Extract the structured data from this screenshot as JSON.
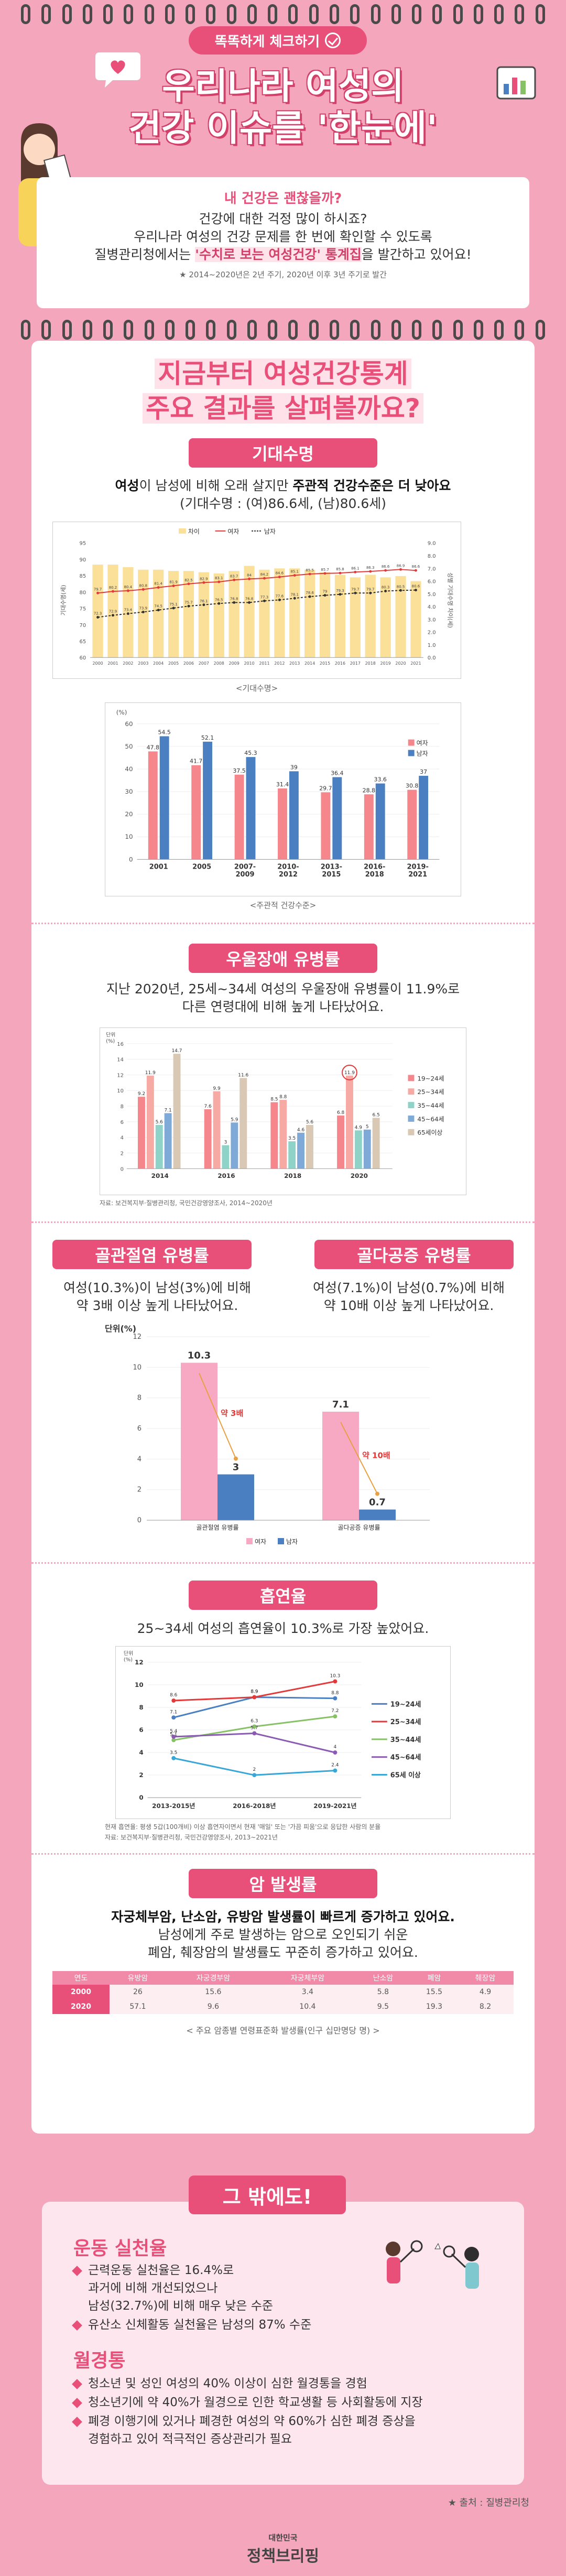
{
  "header": {
    "badge": "똑똑하게 체크하기",
    "title_line1": "우리나라 여성의",
    "title_line2": "건강 이슈를 '한눈에'"
  },
  "intro": {
    "question": "내 건강은 괜찮을까?",
    "line1": "건강에 대한 걱정 많이 하시죠?",
    "line2": "우리나라 여성의 건강 문제를 한 번에 확인할 수 있도록",
    "line3_pre": "질병관리청에서는 ",
    "line3_hl": "'수치로 보는 여성건강' 통계집",
    "line3_post": "을 발간하고 있어요!",
    "note": "★ 2014~2020년은 2년 주기, 2020년 이후 3년 주기로 발간"
  },
  "section": {
    "head_line1": "지금부터 여성건강통계",
    "head_line2": "주요 결과를 살펴볼까요?"
  },
  "life": {
    "pill": "기대수명",
    "text1_a": "여성",
    "text1_b": "이 남성에 비해 오래 살지만 ",
    "text1_c": "주관적 건강수준은 더 낮아요",
    "text2": "(기대수명 : (여)86.6세, (남)80.6세)",
    "chart1_caption": "<기대수명>",
    "chart2_caption": "<주관적 건강수준>"
  },
  "chart_life": {
    "type": "line",
    "legend": [
      "차이",
      "여자",
      "남자"
    ],
    "y_left_label": "기대수명(세)",
    "y_right_label": "성별 기대수명 차이(세)",
    "x": [
      "2000",
      "2001",
      "2002",
      "2003",
      "2004",
      "2005",
      "2006",
      "2007",
      "2008",
      "2009",
      "2010",
      "2011",
      "2012",
      "2013",
      "2014",
      "2015",
      "2016",
      "2017",
      "2018",
      "2019",
      "2020",
      "2021"
    ],
    "female": [
      79.7,
      80.2,
      80.4,
      80.8,
      81.4,
      81.9,
      82.5,
      82.9,
      83.1,
      83.7,
      84.0,
      84.2,
      84.6,
      85.1,
      85.5,
      85.7,
      85.8,
      86.1,
      86.3,
      86.6,
      86.9,
      86.6
    ],
    "male": [
      72.3,
      72.9,
      73.4,
      73.9,
      74.5,
      75.1,
      75.7,
      76.1,
      76.5,
      76.8,
      76.8,
      77.3,
      77.6,
      78.1,
      78.6,
      79.0,
      79.3,
      79.7,
      79.7,
      80.3,
      80.5,
      80.6
    ],
    "diff": [
      7.3,
      7.3,
      7.1,
      6.9,
      6.9,
      6.8,
      6.8,
      6.7,
      6.6,
      6.8,
      7.2,
      6.9,
      7.0,
      7.0,
      6.9,
      6.7,
      6.5,
      6.3,
      6.5,
      6.3,
      6.4,
      6.0
    ],
    "ylim": [
      60,
      95
    ],
    "ylim_right": [
      0,
      9
    ],
    "y_ticks": [
      "95",
      "90",
      "85",
      "80",
      "75",
      "70",
      "65",
      "60"
    ],
    "y_right_ticks": [
      "9.0",
      "8.0",
      "7.0",
      "6.0",
      "5.0",
      "4.0",
      "3.0",
      "2.0",
      "1.0",
      "0.0"
    ]
  },
  "chart_subjective": {
    "type": "bar",
    "unit": "(%)",
    "legend": [
      "여자",
      "남자"
    ],
    "categories": [
      "2001",
      "2005",
      "2007-\n2009",
      "2010-\n2012",
      "2013-\n2015",
      "2016-\n2018",
      "2019-\n2021"
    ],
    "female": [
      47.8,
      41.7,
      37.5,
      31.4,
      29.7,
      28.8,
      30.8
    ],
    "male": [
      54.5,
      52.1,
      45.3,
      39.0,
      36.4,
      33.6,
      37.0
    ],
    "ylim": [
      0,
      60
    ],
    "y_ticks": [
      "60",
      "50",
      "40",
      "30",
      "20",
      "10",
      "0"
    ]
  },
  "depression": {
    "pill": "우울장애 유병률",
    "text1": "지난 2020년, 25세~34세 여성의 우울장애 유병률이 11.9%로",
    "text2": "다른 연령대에 비해 높게 나타났어요.",
    "source": "자료: 보건복지부·질병관리청, 국민건강영양조사, 2014~2020년"
  },
  "chart_depression": {
    "type": "bar",
    "unit": "단위\n(%)",
    "categories": [
      "2014",
      "2016",
      "2018",
      "2020"
    ],
    "series": [
      {
        "name": "19~24세",
        "color": "#f4868c",
        "values": [
          9.2,
          7.6,
          8.5,
          6.8
        ]
      },
      {
        "name": "25~34세",
        "color": "#f7a9a4",
        "values": [
          11.9,
          9.9,
          8.8,
          11.9
        ]
      },
      {
        "name": "35~44세",
        "color": "#8fd3c8",
        "values": [
          5.6,
          3.0,
          3.5,
          4.9
        ]
      },
      {
        "name": "45~64세",
        "color": "#7fa9d6",
        "values": [
          7.1,
          5.9,
          4.6,
          5.0
        ]
      },
      {
        "name": "65세이상",
        "color": "#d9c8b4",
        "values": [
          14.7,
          11.6,
          5.6,
          6.5
        ]
      }
    ],
    "ylim": [
      0,
      16
    ],
    "y_ticks": [
      "16",
      "14",
      "12",
      "10",
      "8",
      "6",
      "4",
      "2",
      "0"
    ]
  },
  "bone": {
    "pill1": "골관절염 유병률",
    "pill2": "골다공증 유병률",
    "text1_l1": "여성(10.3%)이 남성(3%)에 비해",
    "text1_l2": "약 3배 이상 높게 나타났어요.",
    "text2_l1": "여성(7.1%)이 남성(0.7%)에 비해",
    "text2_l2": "약 10배 이상 높게 나타났어요."
  },
  "chart_bone": {
    "type": "bar",
    "unit": "단위(%)",
    "categories": [
      "골관절염 유병률",
      "골다공증 유병률"
    ],
    "series": [
      {
        "name": "여자",
        "values": [
          10.3,
          7.1
        ]
      },
      {
        "name": "남자",
        "values": [
          3,
          0.7
        ]
      }
    ],
    "annotations": [
      "약 3배",
      "약 10배"
    ],
    "ylim": [
      0,
      12
    ],
    "y_ticks": [
      "12",
      "10",
      "8",
      "6",
      "4",
      "2",
      "0"
    ]
  },
  "smoking": {
    "pill": "흡연율",
    "text": "25~34세 여성의 흡연율이 10.3%로 가장 높았어요.",
    "note1": "현재 흡연율: 평생 5갑(100개비) 이상 흡연자이면서 현재 '매일' 또는 '가끔 피움'으로 응답한 사람의 분율",
    "note2": "자료: 보건복지부·질병관리청, 국민건강영양조사, 2013~2021년"
  },
  "chart_smoking": {
    "type": "line",
    "unit": "단위\n(%)",
    "x": [
      "2013-2015년",
      "2016-2018년",
      "2019-2021년"
    ],
    "series": [
      {
        "name": "19~24세",
        "color": "#4a7fc1",
        "values": [
          7.1,
          8.9,
          8.8
        ]
      },
      {
        "name": "25~34세",
        "color": "#e03a3a",
        "values": [
          8.6,
          8.9,
          10.3
        ]
      },
      {
        "name": "35~44세",
        "color": "#86c166",
        "values": [
          5.1,
          6.3,
          7.2
        ]
      },
      {
        "name": "45~64세",
        "color": "#8a5bb0",
        "values": [
          5.4,
          5.7,
          4.0
        ]
      },
      {
        "name": "65세 이상",
        "color": "#3aa6d6",
        "values": [
          3.5,
          2.0,
          2.4
        ]
      }
    ],
    "ylim": [
      0,
      12
    ],
    "y_ticks": [
      "12",
      "10",
      "8",
      "6",
      "4",
      "2",
      "0"
    ]
  },
  "cancer": {
    "pill": "암 발생률",
    "text1": "자궁체부암, 난소암, 유방암 발생률이 빠르게 증가하고 있어요.",
    "text2": "남성에게 주로 발생하는 암으로 오인되기 쉬운",
    "text3": "폐암, 췌장암의 발생률도 꾸준히 증가하고 있어요.",
    "caption": "< 주요 암종별 연령표준화 발생률(인구 십만명당 명) >",
    "headers": [
      "연도",
      "유방암",
      "자궁경부암",
      "자궁체부암",
      "난소암",
      "폐암",
      "췌장암"
    ],
    "rows": [
      [
        "2000",
        "26",
        "15.6",
        "3.4",
        "5.8",
        "15.5",
        "4.9"
      ],
      [
        "2020",
        "57.1",
        "9.6",
        "10.4",
        "9.5",
        "19.3",
        "8.2"
      ]
    ]
  },
  "other": {
    "pill": "그 밖에도!",
    "exercise_title": "운동 실천율",
    "exercise_b1_l1": "근력운동 실천율은 16.4%로",
    "exercise_b1_l2": "과거에 비해 개선되었으나",
    "exercise_b1_l3": "남성(32.7%)에 비해 매우 낮은 수준",
    "exercise_b2": "유산소 신체활동 실천율은 남성의 87% 수준",
    "menses_title": "월경통",
    "menses_b1": "청소년 및 성인 여성의 40% 이상이 심한 월경통을 경험",
    "menses_b2": "청소년기에 약 40%가 월경으로 인한 학교생활 등 사회활동에 지장",
    "menses_b3_l1": "폐경 이행기에 있거나 폐경한 여성의 약 60%가 심한 폐경 증상을",
    "menses_b3_l2": "경험하고 있어 적극적인 증상관리가 필요"
  },
  "footer": {
    "source": "★ 출처 : 질병관리청",
    "logo_small": "대한민국",
    "logo_big": "정책브리핑"
  },
  "colors": {
    "bg": "#f3a6bc",
    "accent": "#e8507a",
    "female": "#f4868c",
    "male": "#4a7fc1",
    "bone_female": "#f7a9c4",
    "bone_male": "#4a7fc1"
  }
}
